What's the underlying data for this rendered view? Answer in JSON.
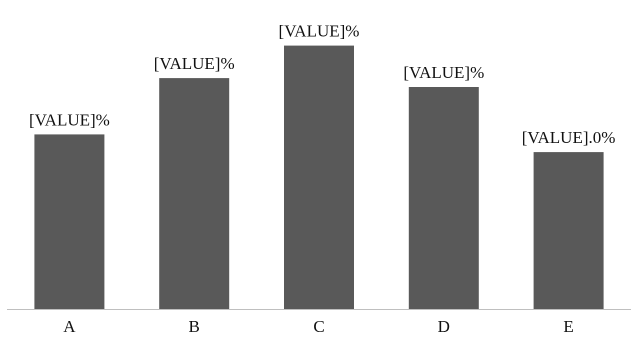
{
  "chart_data": {
    "type": "bar",
    "categories": [
      "A",
      "B",
      "C",
      "D",
      "E"
    ],
    "values": [
      59,
      78,
      89,
      75,
      53
    ],
    "data_labels": [
      "[VALUE]%",
      "[VALUE]%",
      "[VALUE]%",
      "[VALUE]%",
      "[VALUE].0%"
    ],
    "title": "",
    "xlabel": "",
    "ylabel": "",
    "ylim": [
      0,
      100
    ],
    "grid": false,
    "legend": "none",
    "bar_color": "#595959",
    "axis_color": "#bfbfbf"
  }
}
